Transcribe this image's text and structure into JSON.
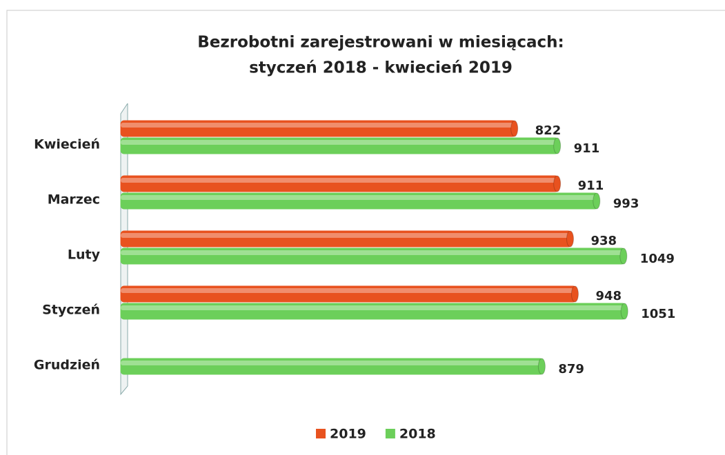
{
  "chart_data": {
    "type": "bar",
    "orientation": "horizontal",
    "title": [
      "Bezrobotni zarejestrowani w miesiącach:",
      "styczeń 2018 - kwiecień 2019"
    ],
    "categories": [
      "Kwiecień",
      "Marzec",
      "Luty",
      "Styczeń",
      "Grudzień"
    ],
    "series": [
      {
        "name": "2019",
        "color": "#e8521f",
        "values": [
          822,
          911,
          938,
          948,
          null
        ]
      },
      {
        "name": "2018",
        "color": "#6ccf5a",
        "values": [
          911,
          993,
          1049,
          1051,
          879
        ]
      }
    ],
    "xlim": [
      0,
      1200
    ],
    "legend": "bottom"
  }
}
